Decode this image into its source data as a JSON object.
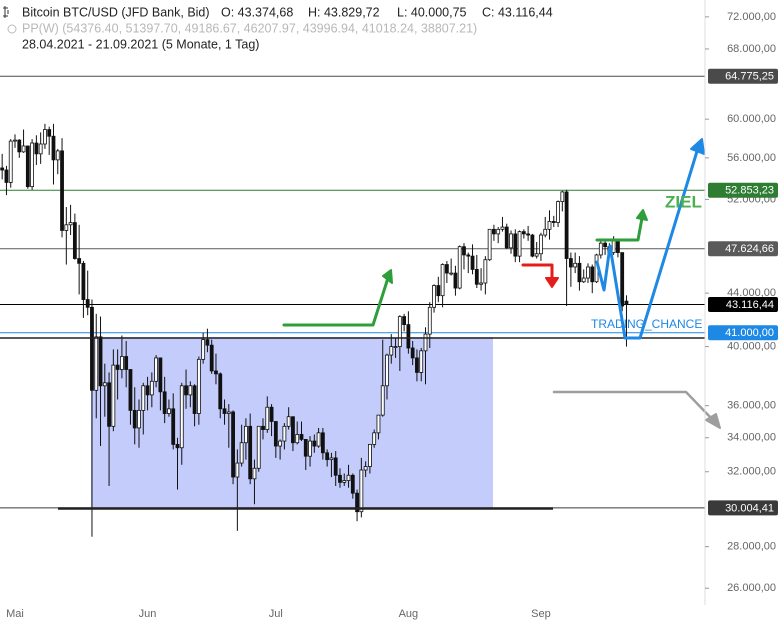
{
  "chart_data": {
    "type": "candlestick",
    "title": "Bitcoin BTC/USD (JFD Bank, Bid)",
    "ohlc_labels": [
      "O: 43.374,68",
      "H: 43.829,72",
      "L: 40.000,75",
      "C: 43.116,44"
    ],
    "subtitle": "PP(W)  (54376.40, 51397.70, 49186.67, 46207.97, 43996.94, 41018.24, 38807.21)",
    "period": "28.04.2021 - 21.09.2021  (5 Monate, 1 Tag)",
    "annotations": [
      "ZIEL",
      "TRADING_CHANCE"
    ],
    "log_scale": true,
    "ylim": [
      25460,
      74200
    ],
    "yticks": [
      {
        "value": 26000,
        "label": "26.000,00"
      },
      {
        "value": 28000,
        "label": "28.000,00"
      },
      {
        "value": 32000,
        "label": "32.000,00"
      },
      {
        "value": 34000,
        "label": "34.000,00"
      },
      {
        "value": 36000,
        "label": "36.000,00"
      },
      {
        "value": 40000,
        "label": "40.000,00"
      },
      {
        "value": 44000,
        "label": "44.000,00"
      },
      {
        "value": 52000,
        "label": "52.000,00"
      },
      {
        "value": 56000,
        "label": "56.000,00"
      },
      {
        "value": 60000,
        "label": "60.000,00"
      },
      {
        "value": 68000,
        "label": "68.000,00"
      },
      {
        "value": 72000,
        "label": "72.000,00"
      }
    ],
    "levels": [
      {
        "value": 64775.25,
        "label": "64.775,25",
        "color": "#4a4a4a"
      },
      {
        "value": 52853.23,
        "label": "52.853,23",
        "color": "#2e7d32"
      },
      {
        "value": 47624.66,
        "label": "47.624,66",
        "color": "#5a5a5a"
      },
      {
        "value": 43116.44,
        "label": "43.116,44",
        "color": "#000000"
      },
      {
        "value": 41000,
        "label": "41.000,00",
        "color": "#1e88e5"
      },
      {
        "value": 30004.41,
        "label": "30.004,41",
        "color": "#3a3a3a"
      }
    ],
    "categories": [
      null,
      null,
      null,
      "Mai",
      null,
      null,
      null,
      null,
      null,
      null,
      null,
      null,
      null,
      null,
      null,
      null,
      null,
      null,
      null,
      null,
      null,
      null,
      null,
      null,
      null,
      null,
      null,
      null,
      null,
      null,
      null,
      null,
      null,
      null,
      "Jun",
      null,
      null,
      null,
      null,
      null,
      null,
      null,
      null,
      null,
      null,
      null,
      null,
      null,
      null,
      null,
      null,
      null,
      null,
      null,
      null,
      null,
      null,
      null,
      null,
      null,
      null,
      null,
      null,
      null,
      "Jul",
      null,
      null,
      null,
      null,
      null,
      null,
      null,
      null,
      null,
      null,
      null,
      null,
      null,
      null,
      null,
      null,
      null,
      null,
      null,
      null,
      null,
      null,
      null,
      null,
      null,
      null,
      null,
      null,
      null,
      null,
      "Aug",
      null,
      null,
      null,
      null,
      null,
      null,
      null,
      null,
      null,
      null,
      null,
      null,
      null,
      null,
      null,
      null,
      null,
      null,
      null,
      null,
      null,
      null,
      null,
      null,
      null,
      null,
      null,
      null,
      null,
      null,
      "Sep",
      null,
      null,
      null,
      null,
      null,
      null,
      null,
      null,
      null,
      null,
      null,
      null,
      null,
      null,
      null,
      null,
      null,
      null,
      null,
      null
    ],
    "candles": [
      [
        55000,
        56400,
        53900,
        54800
      ],
      [
        54800,
        55200,
        52400,
        53600
      ],
      [
        53600,
        57900,
        53100,
        57700
      ],
      [
        57700,
        58400,
        57000,
        57800
      ],
      [
        57800,
        57900,
        56000,
        56600
      ],
      [
        56600,
        58900,
        56500,
        57200
      ],
      [
        57200,
        57200,
        53000,
        53200
      ],
      [
        53200,
        57900,
        52900,
        57500
      ],
      [
        57500,
        58300,
        55300,
        56400
      ],
      [
        56400,
        58600,
        55400,
        57400
      ],
      [
        57400,
        59500,
        56900,
        58900
      ],
      [
        58900,
        59200,
        56300,
        58200
      ],
      [
        58200,
        59500,
        53400,
        55800
      ],
      [
        55800,
        56900,
        54400,
        56700
      ],
      [
        56700,
        58000,
        48600,
        49200
      ],
      [
        49200,
        51300,
        46300,
        49700
      ],
      [
        49700,
        51500,
        48800,
        49900
      ],
      [
        49900,
        50700,
        46700,
        46800
      ],
      [
        46800,
        49700,
        43900,
        46400
      ],
      [
        46400,
        46600,
        42100,
        43500
      ],
      [
        43500,
        45800,
        42300,
        42900
      ],
      [
        42900,
        43500,
        28500,
        37000
      ],
      [
        37000,
        42400,
        35200,
        40700
      ],
      [
        40700,
        42200,
        33500,
        37300
      ],
      [
        37300,
        38800,
        35300,
        37500
      ],
      [
        37500,
        38200,
        31200,
        34700
      ],
      [
        34700,
        39800,
        34400,
        38700
      ],
      [
        38700,
        39800,
        36400,
        38400
      ],
      [
        38400,
        40800,
        37800,
        39300
      ],
      [
        39300,
        40400,
        37200,
        38400
      ],
      [
        38400,
        38400,
        34800,
        35700
      ],
      [
        35700,
        37200,
        33600,
        34600
      ],
      [
        34600,
        36400,
        33400,
        35700
      ],
      [
        35700,
        37500,
        34200,
        37300
      ],
      [
        37300,
        37900,
        35700,
        36700
      ],
      [
        36700,
        38200,
        35900,
        37600
      ],
      [
        37600,
        39400,
        37200,
        39200
      ],
      [
        39200,
        39200,
        35700,
        36900
      ],
      [
        36900,
        37900,
        34900,
        35500
      ],
      [
        35500,
        36400,
        35300,
        35800
      ],
      [
        35800,
        36800,
        33300,
        33600
      ],
      [
        33600,
        34000,
        31000,
        33400
      ],
      [
        33400,
        37500,
        32400,
        37300
      ],
      [
        37300,
        38400,
        35800,
        36700
      ],
      [
        36700,
        37600,
        35900,
        37300
      ],
      [
        37300,
        37400,
        34700,
        35500
      ],
      [
        35500,
        39300,
        34800,
        39100
      ],
      [
        39100,
        41000,
        38800,
        40500
      ],
      [
        40500,
        41300,
        39600,
        40100
      ],
      [
        40100,
        40500,
        38100,
        38300
      ],
      [
        38300,
        39500,
        37400,
        38100
      ],
      [
        38100,
        38200,
        35200,
        35800
      ],
      [
        35800,
        36400,
        34800,
        35500
      ],
      [
        35500,
        36100,
        33400,
        35600
      ],
      [
        35600,
        35700,
        31300,
        31700
      ],
      [
        31700,
        33300,
        28800,
        32500
      ],
      [
        32500,
        34800,
        32300,
        33700
      ],
      [
        33700,
        35200,
        32700,
        34700
      ],
      [
        34700,
        35500,
        31300,
        31600
      ],
      [
        31600,
        32700,
        30200,
        32200
      ],
      [
        32200,
        34700,
        32000,
        34700
      ],
      [
        34700,
        35200,
        33900,
        34500
      ],
      [
        34500,
        36600,
        34300,
        35900
      ],
      [
        35900,
        36100,
        34100,
        35000
      ],
      [
        35000,
        35000,
        32800,
        33500
      ],
      [
        33500,
        33900,
        32700,
        33800
      ],
      [
        33800,
        34900,
        33300,
        34700
      ],
      [
        34700,
        35900,
        34500,
        35300
      ],
      [
        35300,
        35300,
        33200,
        33700
      ],
      [
        33700,
        35000,
        33600,
        34200
      ],
      [
        34200,
        35000,
        33800,
        33900
      ],
      [
        33900,
        33900,
        32100,
        32900
      ],
      [
        32900,
        34100,
        32300,
        33800
      ],
      [
        33800,
        34200,
        33100,
        33500
      ],
      [
        33500,
        34600,
        33400,
        34300
      ],
      [
        34300,
        34600,
        32700,
        33100
      ],
      [
        33100,
        33300,
        32300,
        32700
      ],
      [
        32700,
        33100,
        31700,
        32800
      ],
      [
        32800,
        33200,
        31200,
        31800
      ],
      [
        31800,
        32200,
        31100,
        31400
      ],
      [
        31400,
        31900,
        31200,
        31500
      ],
      [
        31500,
        32400,
        31100,
        31800
      ],
      [
        31800,
        31900,
        30500,
        30800
      ],
      [
        30800,
        31000,
        29300,
        29800
      ],
      [
        29800,
        32800,
        29500,
        32100
      ],
      [
        32100,
        32600,
        31700,
        32300
      ],
      [
        32300,
        33600,
        31900,
        33600
      ],
      [
        33600,
        34500,
        33400,
        34300
      ],
      [
        34300,
        35400,
        33900,
        35400
      ],
      [
        35400,
        40500,
        35300,
        37300
      ],
      [
        37300,
        39500,
        36400,
        39400
      ],
      [
        39400,
        40900,
        38800,
        40000
      ],
      [
        40000,
        40600,
        39200,
        40000
      ],
      [
        40000,
        42300,
        38300,
        42200
      ],
      [
        42200,
        42400,
        41100,
        41600
      ],
      [
        41600,
        42600,
        39500,
        39900
      ],
      [
        39900,
        40400,
        38700,
        39200
      ],
      [
        39200,
        39800,
        37600,
        38200
      ],
      [
        38200,
        39900,
        37600,
        39700
      ],
      [
        39700,
        41400,
        37400,
        40900
      ],
      [
        40900,
        43300,
        39900,
        42900
      ],
      [
        42900,
        44700,
        42500,
        44600
      ],
      [
        44600,
        45300,
        43300,
        43800
      ],
      [
        43800,
        46400,
        42900,
        46300
      ],
      [
        46300,
        46600,
        44800,
        45600
      ],
      [
        45600,
        46800,
        45400,
        45600
      ],
      [
        45600,
        46200,
        43800,
        44400
      ],
      [
        44400,
        47900,
        44300,
        47800
      ],
      [
        47800,
        48100,
        45900,
        47100
      ],
      [
        47100,
        47300,
        45600,
        47000
      ],
      [
        47000,
        48000,
        45500,
        45900
      ],
      [
        45900,
        47100,
        44400,
        44700
      ],
      [
        44700,
        46000,
        44200,
        44800
      ],
      [
        44800,
        47000,
        43900,
        46700
      ],
      [
        46700,
        49300,
        46600,
        49300
      ],
      [
        49300,
        49700,
        48300,
        48900
      ],
      [
        48900,
        49500,
        48100,
        49300
      ],
      [
        49300,
        50400,
        49100,
        49500
      ],
      [
        49500,
        49800,
        47600,
        47700
      ],
      [
        47700,
        49200,
        47200,
        48900
      ],
      [
        48900,
        49300,
        46500,
        47000
      ],
      [
        47000,
        49200,
        46500,
        49100
      ],
      [
        49100,
        49300,
        48500,
        48900
      ],
      [
        48900,
        49600,
        48300,
        48800
      ],
      [
        48800,
        48900,
        46900,
        47000
      ],
      [
        47000,
        48200,
        46800,
        47200
      ],
      [
        47200,
        49000,
        46600,
        48800
      ],
      [
        48800,
        50400,
        48600,
        49300
      ],
      [
        49300,
        51000,
        48400,
        50000
      ],
      [
        50000,
        50500,
        49500,
        49900
      ],
      [
        49900,
        51900,
        49500,
        51800
      ],
      [
        51800,
        52800,
        50900,
        52700
      ],
      [
        52700,
        52900,
        43000,
        46800
      ],
      [
        46800,
        47300,
        44500,
        46100
      ],
      [
        46100,
        47300,
        45600,
        46400
      ],
      [
        46400,
        47000,
        44200,
        44900
      ],
      [
        44900,
        45900,
        44800,
        45200
      ],
      [
        45200,
        46400,
        44800,
        46100
      ],
      [
        46100,
        46300,
        44000,
        44900
      ],
      [
        44900,
        47200,
        44800,
        47100
      ],
      [
        47100,
        48400,
        46800,
        48100
      ],
      [
        48100,
        48400,
        47100,
        47800
      ],
      [
        47800,
        48100,
        46900,
        47300
      ],
      [
        47300,
        48700,
        47100,
        48300
      ],
      [
        48300,
        48300,
        46900,
        47300
      ],
      [
        47300,
        47300,
        42600,
        43000
      ],
      [
        43374.68,
        43829.72,
        40000.75,
        43116.44
      ]
    ]
  }
}
